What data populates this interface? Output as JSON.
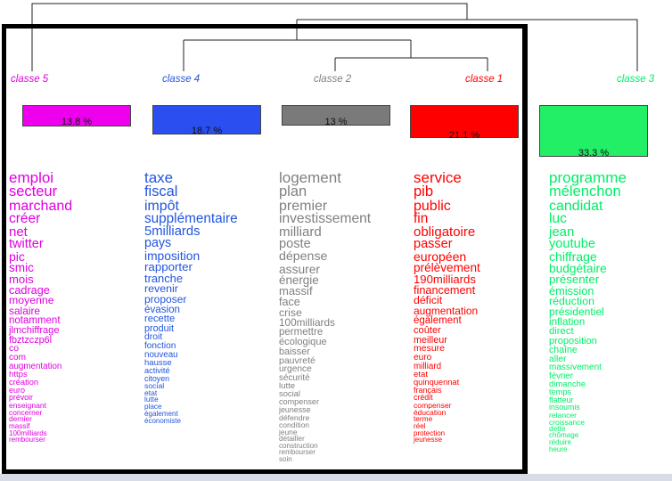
{
  "classes": [
    {
      "label": "classe  5",
      "percent": "13.8 %",
      "color": "#e000e0",
      "words": [
        "emploi",
        "secteur",
        "marchand",
        "créer",
        "net",
        "twitter",
        "pic",
        "smic",
        "mois",
        "cadrage",
        "moyenne",
        "salaire",
        "notamment",
        "jlmchiffrage",
        "fbztzczp6l",
        "co",
        "com",
        "augmentation",
        "https",
        "création",
        "euro",
        "prévoir",
        "enseignant",
        "concerner",
        "dernier",
        "massif",
        "100milliards",
        "rembourser"
      ]
    },
    {
      "label": "classe  4",
      "percent": "18.7 %",
      "color": "#2255dd",
      "words": [
        "taxe",
        "fiscal",
        "impôt",
        "supplémentaire",
        "5milliards",
        "pays",
        "imposition",
        "rapporter",
        "tranche",
        "revenir",
        "proposer",
        "évasion",
        "recette",
        "produit",
        "droit",
        "fonction",
        "nouveau",
        "hausse",
        "activité",
        "citoyen",
        "social",
        "etat",
        "lutte",
        "place",
        "également",
        "économiste"
      ]
    },
    {
      "label": "classe  2",
      "percent": "13 %",
      "color": "#808080",
      "words": [
        "logement",
        "plan",
        "premier",
        "investissement",
        "milliard",
        "poste",
        "dépense",
        "assurer",
        "énergie",
        "massif",
        "face",
        "crise",
        "100milliards",
        "permettre",
        "écologique",
        "baisser",
        "pauvreté",
        "urgence",
        "sécurité",
        "lutte",
        "social",
        "compenser",
        "jeunesse",
        "défendre",
        "condition",
        "jeune",
        "détailler",
        "construction",
        "rembourser",
        "soin"
      ]
    },
    {
      "label": "classe  1",
      "percent": "21.1 %",
      "color": "#ff0000",
      "words": [
        "service",
        "pib",
        "public",
        "fin",
        "obligatoire",
        "passer",
        "européen",
        "prélèvement",
        "190milliards",
        "financement",
        "déficit",
        "augmentation",
        "également",
        "coûter",
        "meilleur",
        "mesure",
        "euro",
        "milliard",
        "etat",
        "quinquennat",
        "français",
        "crédit",
        "compenser",
        "éducation",
        "terme",
        "réel",
        "protection",
        "jeunesse"
      ]
    },
    {
      "label": "classe  3",
      "percent": "33.3 %",
      "color": "#00ee66",
      "words": [
        "programme",
        "mélenchon",
        "candidat",
        "luc",
        "jean",
        "youtube",
        "chiffrage",
        "budgétaire",
        "présenter",
        "émission",
        "réduction",
        "présidentiel",
        "inflation",
        "direct",
        "proposition",
        "chaîne",
        "aller",
        "massivement",
        "février",
        "dimanche",
        "temps",
        "flatteur",
        "insoumis",
        "relancer",
        "croissance",
        "dette",
        "chômage",
        "réduire",
        "heure"
      ]
    }
  ]
}
